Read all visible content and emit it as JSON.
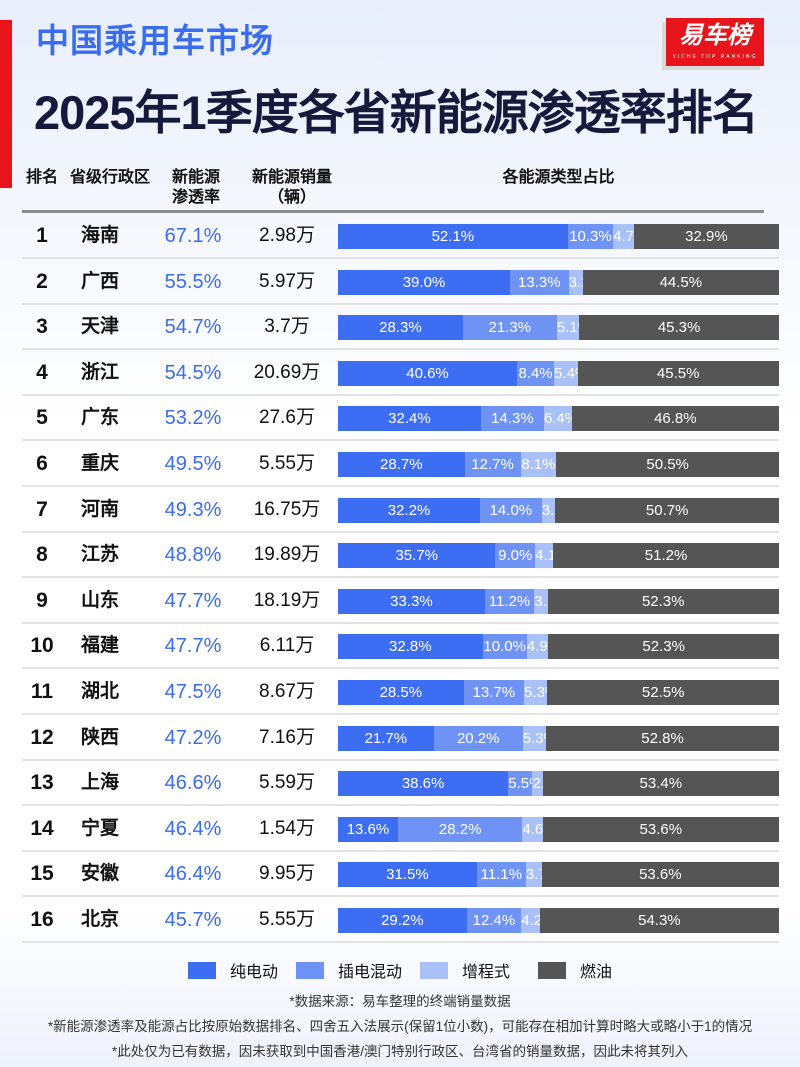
{
  "header": {
    "subtitle": "中国乘用车市场",
    "title": "2025年1季度各省新能源渗透率排名",
    "logo_text": "易车榜",
    "logo_tagline": "YICHE TOP RANKING"
  },
  "columns": {
    "rank": "排名",
    "province": "省级行政区",
    "rate_line1": "新能源",
    "rate_line2": "渗透率",
    "sales_line1": "新能源销量",
    "sales_line2": "（辆）",
    "share": "各能源类型占比"
  },
  "colors": {
    "bev": "#3d6df2",
    "phev": "#6f93f5",
    "erev": "#a9c0f8",
    "ice": "#555555",
    "accent": "#3a6cf0",
    "brand_red": "#e8141c"
  },
  "chart_data": {
    "type": "bar",
    "stacked": true,
    "orientation": "horizontal",
    "unit": "%",
    "categories": [
      "海南",
      "广西",
      "天津",
      "浙江",
      "广东",
      "重庆",
      "河南",
      "江苏",
      "山东",
      "福建",
      "湖北",
      "陕西",
      "上海",
      "宁夏",
      "安徽",
      "北京"
    ],
    "series": [
      {
        "name": "纯电动",
        "values": [
          52.1,
          39.0,
          28.3,
          40.6,
          32.4,
          28.7,
          32.2,
          35.7,
          33.3,
          32.8,
          28.5,
          21.7,
          38.6,
          13.6,
          31.5,
          29.2
        ]
      },
      {
        "name": "插电混动",
        "values": [
          10.3,
          13.3,
          21.3,
          8.4,
          14.3,
          12.7,
          14.0,
          9.0,
          11.2,
          10.0,
          13.7,
          20.2,
          5.5,
          28.2,
          11.1,
          12.4
        ]
      },
      {
        "name": "增程式",
        "values": [
          4.7,
          3.2,
          5.1,
          5.4,
          6.4,
          8.1,
          3.1,
          4.1,
          3.1,
          4.9,
          5.3,
          5.3,
          2.4,
          4.6,
          3.7,
          4.2
        ]
      },
      {
        "name": "燃油",
        "values": [
          32.9,
          44.5,
          45.3,
          45.5,
          46.8,
          50.5,
          50.7,
          51.2,
          52.3,
          52.3,
          52.5,
          52.8,
          53.4,
          53.6,
          53.6,
          54.3
        ]
      }
    ],
    "legend_position": "bottom"
  },
  "rows": [
    {
      "rank": "1",
      "province": "海南",
      "rate": "67.1%",
      "sales": "2.98万"
    },
    {
      "rank": "2",
      "province": "广西",
      "rate": "55.5%",
      "sales": "5.97万"
    },
    {
      "rank": "3",
      "province": "天津",
      "rate": "54.7%",
      "sales": "3.7万"
    },
    {
      "rank": "4",
      "province": "浙江",
      "rate": "54.5%",
      "sales": "20.69万"
    },
    {
      "rank": "5",
      "province": "广东",
      "rate": "53.2%",
      "sales": "27.6万"
    },
    {
      "rank": "6",
      "province": "重庆",
      "rate": "49.5%",
      "sales": "5.55万"
    },
    {
      "rank": "7",
      "province": "河南",
      "rate": "49.3%",
      "sales": "16.75万"
    },
    {
      "rank": "8",
      "province": "江苏",
      "rate": "48.8%",
      "sales": "19.89万"
    },
    {
      "rank": "9",
      "province": "山东",
      "rate": "47.7%",
      "sales": "18.19万"
    },
    {
      "rank": "10",
      "province": "福建",
      "rate": "47.7%",
      "sales": "6.11万"
    },
    {
      "rank": "11",
      "province": "湖北",
      "rate": "47.5%",
      "sales": "8.67万"
    },
    {
      "rank": "12",
      "province": "陕西",
      "rate": "47.2%",
      "sales": "7.16万"
    },
    {
      "rank": "13",
      "province": "上海",
      "rate": "46.6%",
      "sales": "5.59万"
    },
    {
      "rank": "14",
      "province": "宁夏",
      "rate": "46.4%",
      "sales": "1.54万"
    },
    {
      "rank": "15",
      "province": "安徽",
      "rate": "46.4%",
      "sales": "9.95万"
    },
    {
      "rank": "16",
      "province": "北京",
      "rate": "45.7%",
      "sales": "5.55万"
    }
  ],
  "notes": [
    "*数据来源：易车整理的终端销量数据",
    "*新能源渗透率及能源占比按原始数据排名、四舍五入法展示(保留1位小数)，可能存在相加计算时略大或略小于1的情况",
    "*此处仅为已有数据，因未获取到中国香港/澳门特别行政区、台湾省的销量数据，因此未将其列入"
  ]
}
